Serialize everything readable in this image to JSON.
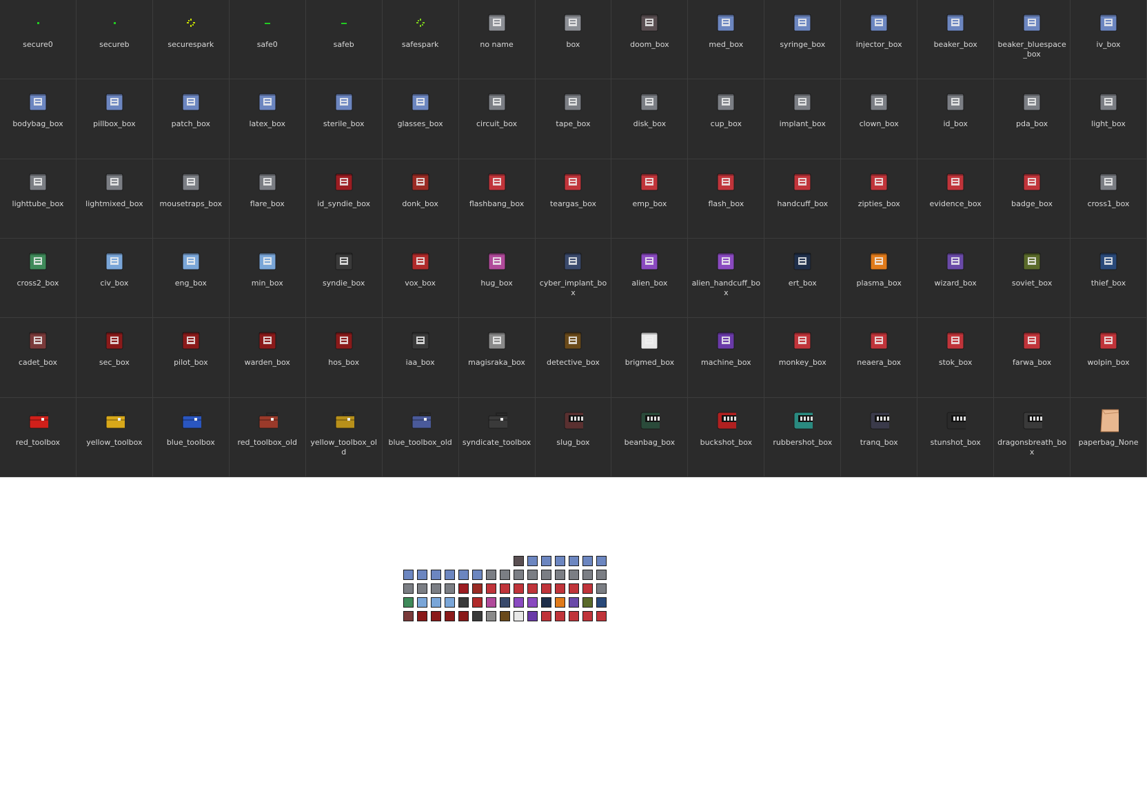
{
  "sprites": [
    {
      "label": "secure0",
      "kind": "dot",
      "color": "#22cc22"
    },
    {
      "label": "secureb",
      "kind": "dot",
      "color": "#22cc22"
    },
    {
      "label": "securespark",
      "kind": "spark",
      "color": "#c8e000"
    },
    {
      "label": "safe0",
      "kind": "dash",
      "color": "#22cc22"
    },
    {
      "label": "safeb",
      "kind": "dash",
      "color": "#22cc22"
    },
    {
      "label": "safespark",
      "kind": "spark",
      "color": "#7ccf1c"
    },
    {
      "label": "no name",
      "kind": "box",
      "color": "#8c8f95"
    },
    {
      "label": "box",
      "kind": "box",
      "color": "#8c8f95"
    },
    {
      "label": "doom_box",
      "kind": "box",
      "color": "#5a4f52"
    },
    {
      "label": "med_box",
      "kind": "box",
      "color": "#6c86c0"
    },
    {
      "label": "syringe_box",
      "kind": "box",
      "color": "#6c86c0"
    },
    {
      "label": "injector_box",
      "kind": "box",
      "color": "#6c86c0"
    },
    {
      "label": "beaker_box",
      "kind": "box",
      "color": "#6c86c0"
    },
    {
      "label": "beaker_bluespace_box",
      "kind": "box",
      "color": "#6c86c0"
    },
    {
      "label": "iv_box",
      "kind": "box",
      "color": "#6c86c0"
    },
    {
      "label": "bodybag_box",
      "kind": "box",
      "color": "#6c86c0"
    },
    {
      "label": "pillbox_box",
      "kind": "box",
      "color": "#6c86c0"
    },
    {
      "label": "patch_box",
      "kind": "box",
      "color": "#6c86c0"
    },
    {
      "label": "latex_box",
      "kind": "box",
      "color": "#6c86c0"
    },
    {
      "label": "sterile_box",
      "kind": "box",
      "color": "#6c86c0"
    },
    {
      "label": "glasses_box",
      "kind": "box",
      "color": "#6c86c0"
    },
    {
      "label": "circuit_box",
      "kind": "box",
      "color": "#7b7e84"
    },
    {
      "label": "tape_box",
      "kind": "box",
      "color": "#7b7e84"
    },
    {
      "label": "disk_box",
      "kind": "box",
      "color": "#7b7e84"
    },
    {
      "label": "cup_box",
      "kind": "box",
      "color": "#7b7e84"
    },
    {
      "label": "implant_box",
      "kind": "box",
      "color": "#7b7e84"
    },
    {
      "label": "clown_box",
      "kind": "box",
      "color": "#7b7e84"
    },
    {
      "label": "id_box",
      "kind": "box",
      "color": "#7b7e84"
    },
    {
      "label": "pda_box",
      "kind": "box",
      "color": "#7b7e84"
    },
    {
      "label": "light_box",
      "kind": "box",
      "color": "#7b7e84"
    },
    {
      "label": "lighttube_box",
      "kind": "box",
      "color": "#7b7e84"
    },
    {
      "label": "lightmixed_box",
      "kind": "box",
      "color": "#7b7e84"
    },
    {
      "label": "mousetraps_box",
      "kind": "box",
      "color": "#7b7e84"
    },
    {
      "label": "flare_box",
      "kind": "box",
      "color": "#7b7e84"
    },
    {
      "label": "id_syndie_box",
      "kind": "box",
      "color": "#9c1d22"
    },
    {
      "label": "donk_box",
      "kind": "box",
      "color": "#9a2b24"
    },
    {
      "label": "flashbang_box",
      "kind": "box",
      "color": "#c0343a"
    },
    {
      "label": "teargas_box",
      "kind": "box",
      "color": "#c0343a"
    },
    {
      "label": "emp_box",
      "kind": "box",
      "color": "#c0343a"
    },
    {
      "label": "flash_box",
      "kind": "box",
      "color": "#c0343a"
    },
    {
      "label": "handcuff_box",
      "kind": "box",
      "color": "#c0343a"
    },
    {
      "label": "zipties_box",
      "kind": "box",
      "color": "#c0343a"
    },
    {
      "label": "evidence_box",
      "kind": "box",
      "color": "#c0343a"
    },
    {
      "label": "badge_box",
      "kind": "box",
      "color": "#c0343a"
    },
    {
      "label": "cross1_box",
      "kind": "box",
      "color": "#7b7e84"
    },
    {
      "label": "cross2_box",
      "kind": "box",
      "color": "#3f8a5a"
    },
    {
      "label": "civ_box",
      "kind": "box",
      "color": "#7aa6d8"
    },
    {
      "label": "eng_box",
      "kind": "box",
      "color": "#7aa6d8"
    },
    {
      "label": "min_box",
      "kind": "box",
      "color": "#7aa6d8"
    },
    {
      "label": "syndie_box",
      "kind": "box",
      "color": "#3a3a3a"
    },
    {
      "label": "vox_box",
      "kind": "box",
      "color": "#b02a2a"
    },
    {
      "label": "hug_box",
      "kind": "box",
      "color": "#b04a9a"
    },
    {
      "label": "cyber_implant_box",
      "kind": "box",
      "color": "#3a4a6c"
    },
    {
      "label": "alien_box",
      "kind": "box",
      "color": "#8a4ac0"
    },
    {
      "label": "alien_handcuff_box",
      "kind": "box",
      "color": "#8a4ac0"
    },
    {
      "label": "ert_box",
      "kind": "box",
      "color": "#1f2f4a"
    },
    {
      "label": "plasma_box",
      "kind": "box",
      "color": "#e07a1a"
    },
    {
      "label": "wizard_box",
      "kind": "box",
      "color": "#6a4aa8"
    },
    {
      "label": "soviet_box",
      "kind": "box",
      "color": "#5a6a2a"
    },
    {
      "label": "thief_box",
      "kind": "box",
      "color": "#2a4a7a"
    },
    {
      "label": "cadet_box",
      "kind": "box",
      "color": "#7a3a3a"
    },
    {
      "label": "sec_box",
      "kind": "box",
      "color": "#8a1a1a"
    },
    {
      "label": "pilot_box",
      "kind": "box",
      "color": "#8a1a1a"
    },
    {
      "label": "warden_box",
      "kind": "box",
      "color": "#8a1a1a"
    },
    {
      "label": "hos_box",
      "kind": "box",
      "color": "#8a1a1a"
    },
    {
      "label": "iaa_box",
      "kind": "box",
      "color": "#3a3a3a"
    },
    {
      "label": "magisraka_box",
      "kind": "box",
      "color": "#8a8a8a"
    },
    {
      "label": "detective_box",
      "kind": "box",
      "color": "#6a4a1a"
    },
    {
      "label": "brigmed_box",
      "kind": "box",
      "color": "#e8e8e8"
    },
    {
      "label": "machine_box",
      "kind": "box",
      "color": "#6a3aa8"
    },
    {
      "label": "monkey_box",
      "kind": "box",
      "color": "#c0343a"
    },
    {
      "label": "neaera_box",
      "kind": "box",
      "color": "#c0343a"
    },
    {
      "label": "stok_box",
      "kind": "box",
      "color": "#c0343a"
    },
    {
      "label": "farwa_box",
      "kind": "box",
      "color": "#c0343a"
    },
    {
      "label": "wolpin_box",
      "kind": "box",
      "color": "#c0343a"
    },
    {
      "label": "red_toolbox",
      "kind": "toolbox",
      "color": "#d0201a"
    },
    {
      "label": "yellow_toolbox",
      "kind": "toolbox",
      "color": "#d8a81a"
    },
    {
      "label": "blue_toolbox",
      "kind": "toolbox",
      "color": "#2a56c0"
    },
    {
      "label": "red_toolbox_old",
      "kind": "toolbox",
      "color": "#9a3a2a"
    },
    {
      "label": "yellow_toolbox_old",
      "kind": "toolbox",
      "color": "#b8901a"
    },
    {
      "label": "blue_toolbox_old",
      "kind": "toolbox",
      "color": "#4a5a9a"
    },
    {
      "label": "syndicate_toolbox",
      "kind": "toolbox",
      "color": "#3a3a3a"
    },
    {
      "label": "slug_box",
      "kind": "ammo",
      "color": "#5a3030"
    },
    {
      "label": "beanbag_box",
      "kind": "ammo",
      "color": "#2a4a3a"
    },
    {
      "label": "buckshot_box",
      "kind": "ammo",
      "color": "#b02020"
    },
    {
      "label": "rubbershot_box",
      "kind": "ammo",
      "color": "#2a8a80"
    },
    {
      "label": "tranq_box",
      "kind": "ammo",
      "color": "#3a3a4a"
    },
    {
      "label": "stunshot_box",
      "kind": "ammo",
      "color": "#2a2a2a"
    },
    {
      "label": "dragonsbreath_box",
      "kind": "ammo",
      "color": "#3a3a3a"
    },
    {
      "label": "paperbag_None",
      "kind": "bag",
      "color": "#e8b890"
    }
  ],
  "atlas_colors": [
    [
      "",
      "",
      "",
      "",
      "",
      "",
      "",
      "",
      "#5a4f52",
      "#6c86c0",
      "#6c86c0",
      "#6c86c0",
      "#6c86c0",
      "#6c86c0",
      "#6c86c0"
    ],
    [
      "#6c86c0",
      "#6c86c0",
      "#6c86c0",
      "#6c86c0",
      "#6c86c0",
      "#6c86c0",
      "#7b7e84",
      "#7b7e84",
      "#7b7e84",
      "#7b7e84",
      "#7b7e84",
      "#7b7e84",
      "#7b7e84",
      "#7b7e84",
      "#7b7e84"
    ],
    [
      "#7b7e84",
      "#7b7e84",
      "#7b7e84",
      "#7b7e84",
      "#9c1d22",
      "#9a2b24",
      "#c0343a",
      "#c0343a",
      "#c0343a",
      "#c0343a",
      "#c0343a",
      "#c0343a",
      "#c0343a",
      "#c0343a",
      "#7b7e84"
    ],
    [
      "#3f8a5a",
      "#7aa6d8",
      "#7aa6d8",
      "#7aa6d8",
      "#3a3a3a",
      "#b02a2a",
      "#b04a9a",
      "#3a4a6c",
      "#8a4ac0",
      "#8a4ac0",
      "#1f2f4a",
      "#e07a1a",
      "#6a4aa8",
      "#5a6a2a",
      "#2a4a7a"
    ],
    [
      "#7a3a3a",
      "#8a1a1a",
      "#8a1a1a",
      "#8a1a1a",
      "#8a1a1a",
      "#3a3a3a",
      "#8a8a8a",
      "#6a4a1a",
      "#e8e8e8",
      "#6a3aa8",
      "#c0343a",
      "#c0343a",
      "#c0343a",
      "#c0343a",
      "#c0343a"
    ]
  ]
}
